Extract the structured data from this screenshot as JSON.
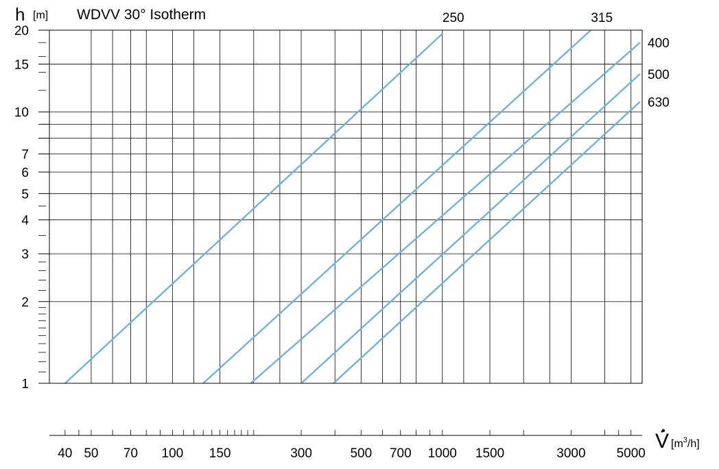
{
  "chart_data": {
    "type": "line",
    "title": "WDVV 30° Isotherm",
    "ylabel": "h",
    "ylabel_unit": "[m]",
    "xlabel": "V̇",
    "xlabel_unit_prefix": "[m",
    "xlabel_unit_sup": "3",
    "xlabel_unit_suffix": "/h]",
    "x_scale": "log",
    "y_scale": "log",
    "xlim": [
      35,
      5500
    ],
    "ylim": [
      1,
      20
    ],
    "grid": true,
    "y_ticks": [
      {
        "value": 1,
        "label": "1",
        "line": false
      },
      {
        "value": 2,
        "label": "2",
        "line": true
      },
      {
        "value": 3,
        "label": "3",
        "line": true
      },
      {
        "value": 4,
        "label": "4",
        "line": true
      },
      {
        "value": 5,
        "label": "5",
        "line": true
      },
      {
        "value": 6,
        "label": "6",
        "line": true
      },
      {
        "value": 7,
        "label": "7",
        "line": true
      },
      {
        "value": 8,
        "label": "",
        "line": true
      },
      {
        "value": 9,
        "label": "",
        "line": true
      },
      {
        "value": 10,
        "label": "10",
        "line": true
      },
      {
        "value": 15,
        "label": "15",
        "line": true
      },
      {
        "value": 20,
        "label": "20",
        "line": false
      }
    ],
    "y_minor_ticks": [
      1.1,
      1.2,
      1.3,
      1.4,
      1.5,
      1.6,
      1.7,
      1.8,
      1.9,
      2.2,
      2.4,
      2.6,
      2.8,
      3.5,
      4.5,
      12,
      14,
      16,
      18
    ],
    "x_grid": [
      50,
      60,
      70,
      80,
      100,
      120,
      150,
      200,
      250,
      300,
      400,
      500,
      600,
      700,
      800,
      1000,
      1200,
      1500,
      2000,
      2500,
      3000,
      4000,
      5000
    ],
    "x_axis_ticks": [
      40,
      45,
      50,
      60,
      70,
      80,
      90,
      100,
      110,
      120,
      130,
      140,
      150,
      160,
      170,
      180,
      190,
      200,
      300,
      400,
      500,
      600,
      700,
      800,
      900,
      1000,
      1500,
      2000,
      3000,
      4000,
      4500,
      5000
    ],
    "x_labels": [
      {
        "value": 40,
        "label": "40"
      },
      {
        "value": 50,
        "label": "50"
      },
      {
        "value": 70,
        "label": "70"
      },
      {
        "value": 100,
        "label": "100"
      },
      {
        "value": 150,
        "label": "150"
      },
      {
        "value": 300,
        "label": "300"
      },
      {
        "value": 500,
        "label": "500"
      },
      {
        "value": 700,
        "label": "700"
      },
      {
        "value": 1000,
        "label": "1000"
      },
      {
        "value": 1500,
        "label": "1500"
      },
      {
        "value": 3000,
        "label": "3000"
      },
      {
        "value": 5000,
        "label": "5000"
      }
    ],
    "series_color": "#6fb1e0",
    "series": [
      {
        "name": "250",
        "label_position": "top",
        "points": [
          [
            40,
            1
          ],
          [
            1000,
            19.4
          ]
        ]
      },
      {
        "name": "315",
        "label_position": "top",
        "points": [
          [
            130,
            1
          ],
          [
            3550,
            20
          ]
        ]
      },
      {
        "name": "400",
        "label_position": "right",
        "points": [
          [
            195,
            1
          ],
          [
            5400,
            18
          ]
        ]
      },
      {
        "name": "500",
        "label_position": "right",
        "points": [
          [
            300,
            1
          ],
          [
            5400,
            13.8
          ]
        ]
      },
      {
        "name": "630",
        "label_position": "right",
        "points": [
          [
            395,
            1
          ],
          [
            5400,
            10.9
          ]
        ]
      }
    ]
  }
}
